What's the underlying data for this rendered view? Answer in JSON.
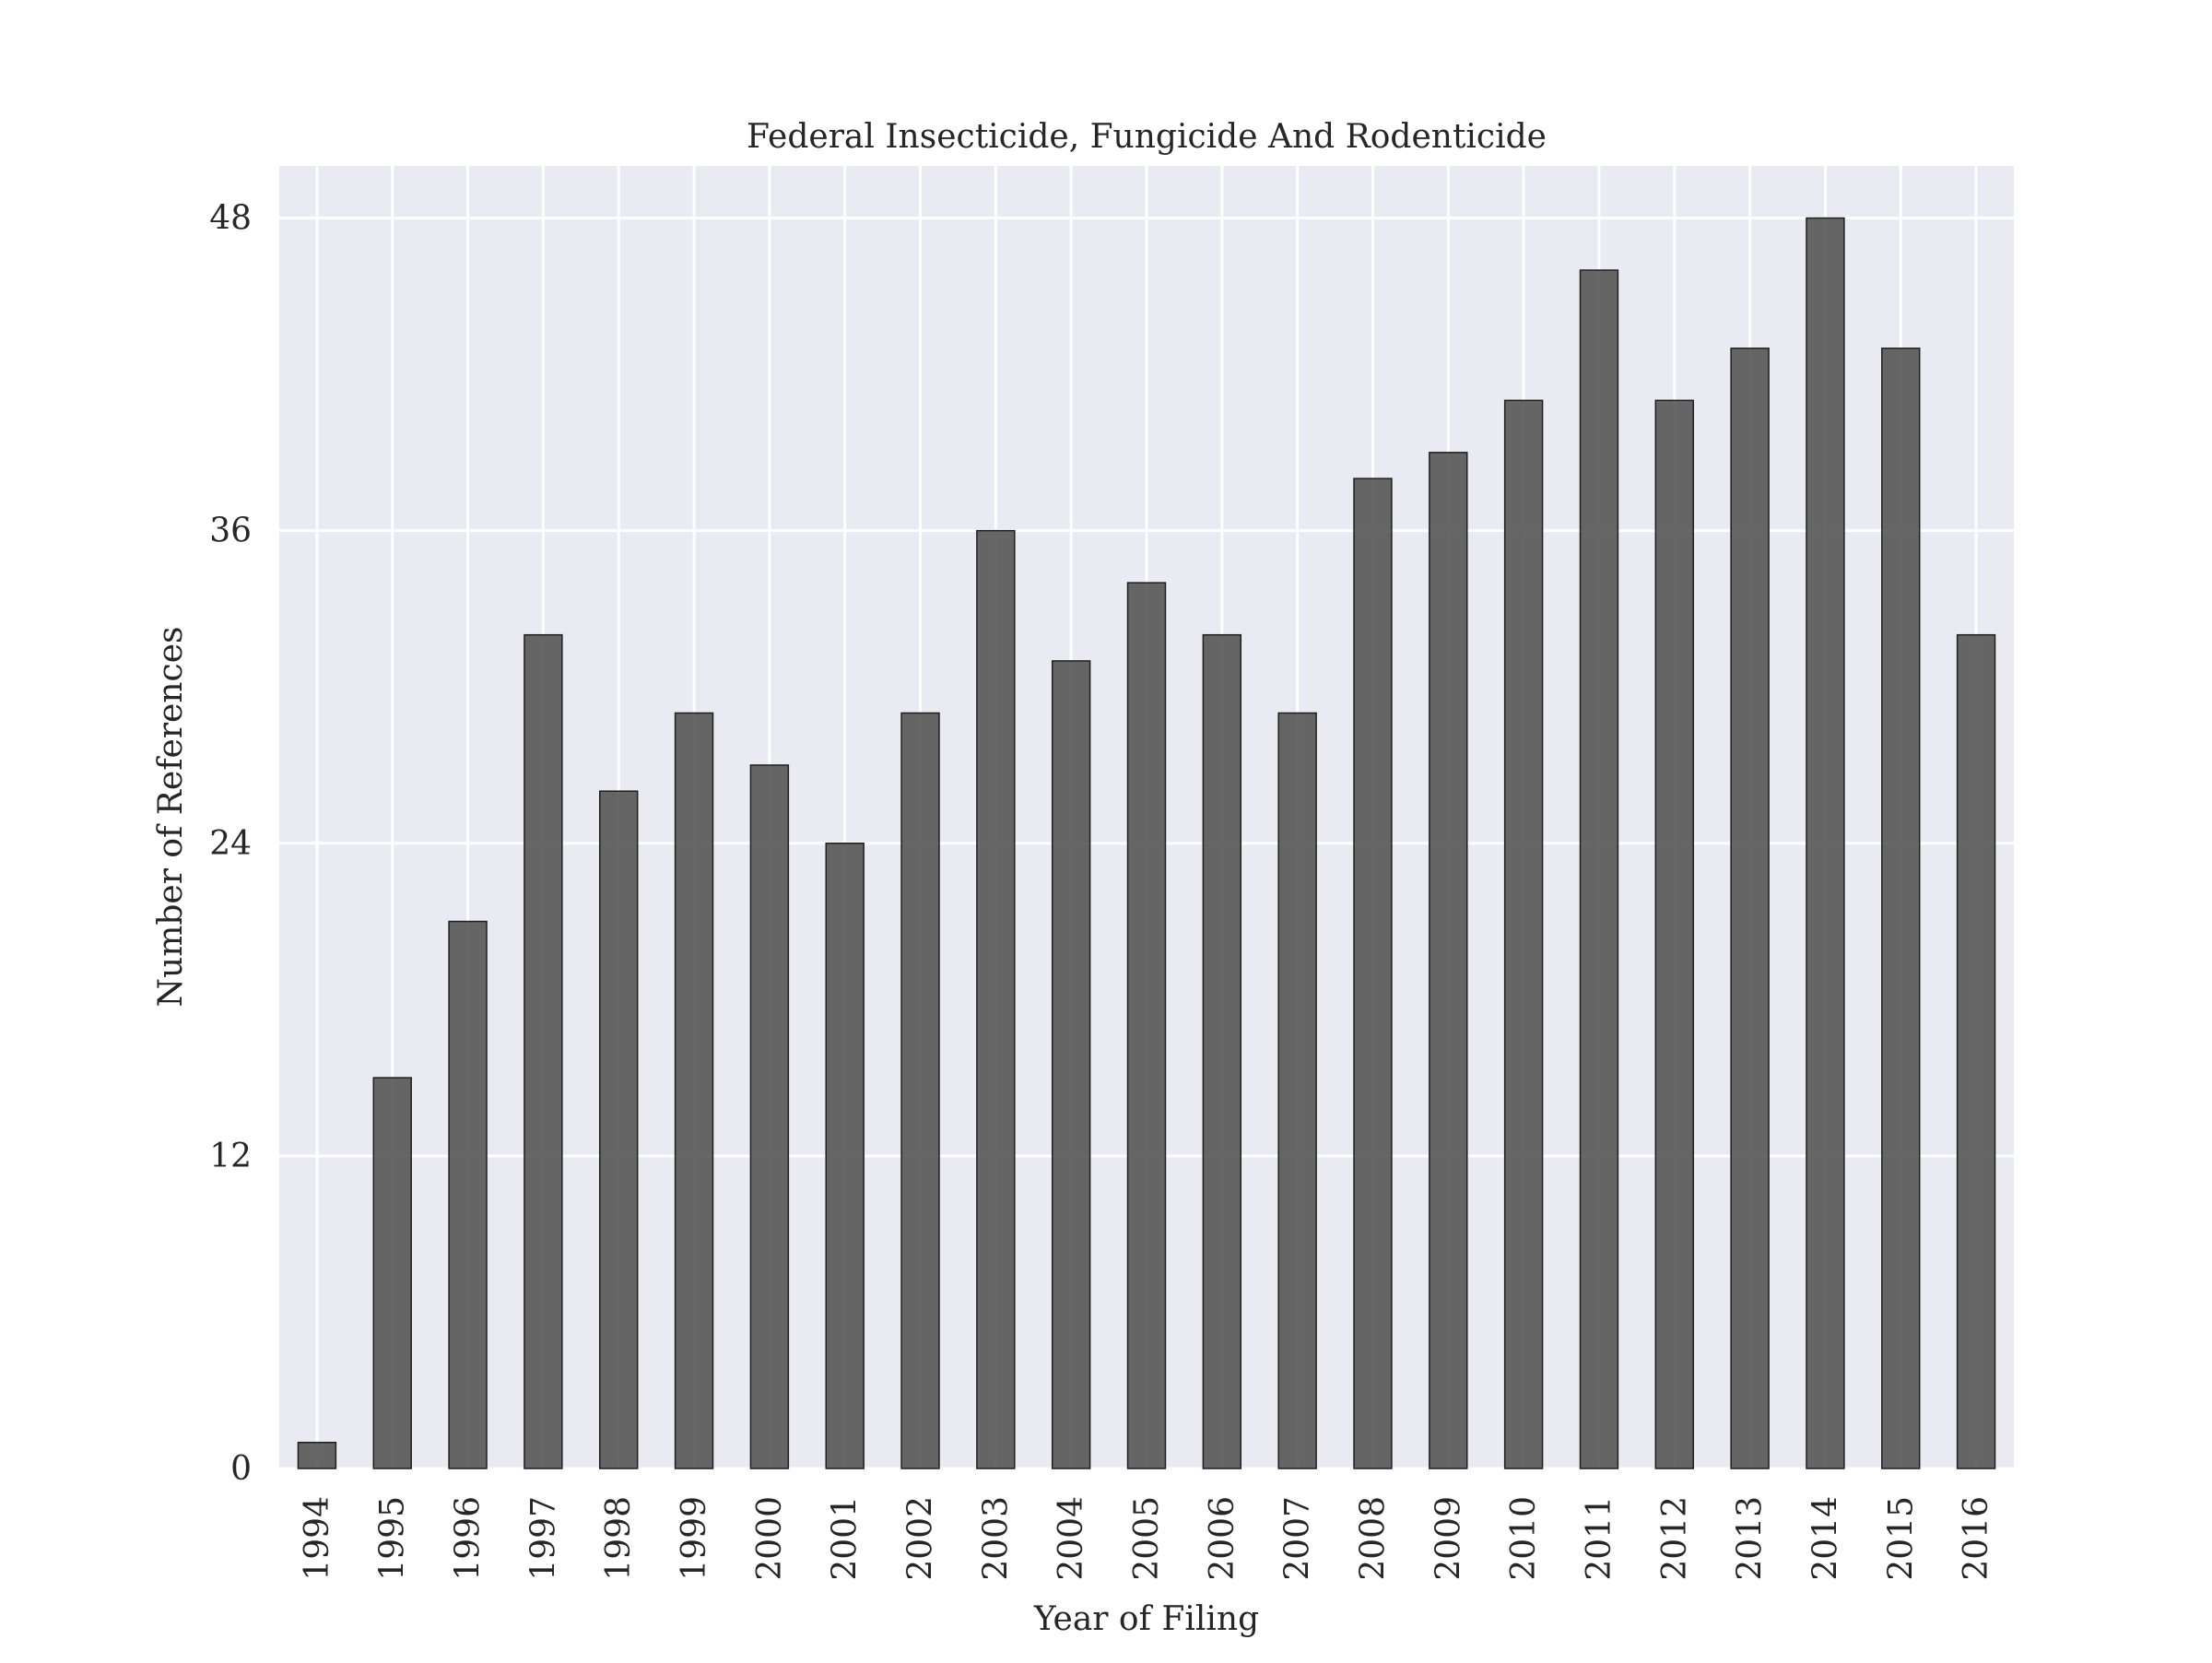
{
  "chart_data": {
    "type": "bar",
    "title": "Federal Insecticide, Fungicide And Rodenticide",
    "xlabel": "Year of Filing",
    "ylabel": "Number of References",
    "categories": [
      "1994",
      "1995",
      "1996",
      "1997",
      "1998",
      "1999",
      "2000",
      "2001",
      "2002",
      "2003",
      "2004",
      "2005",
      "2006",
      "2007",
      "2008",
      "2009",
      "2010",
      "2011",
      "2012",
      "2013",
      "2014",
      "2015",
      "2016"
    ],
    "values": [
      1,
      15,
      21,
      32,
      26,
      29,
      27,
      24,
      29,
      36,
      31,
      34,
      32,
      29,
      38,
      39,
      41,
      46,
      41,
      43,
      48,
      43,
      32
    ],
    "ylim": [
      0,
      50
    ],
    "yticks": [
      0,
      12,
      24,
      36,
      48
    ],
    "grid": true,
    "colors": {
      "bar": "#575757",
      "bar_edge": "#1f1f1f",
      "plot_background": "#eaeaf2",
      "grid": "#ffffff"
    }
  }
}
